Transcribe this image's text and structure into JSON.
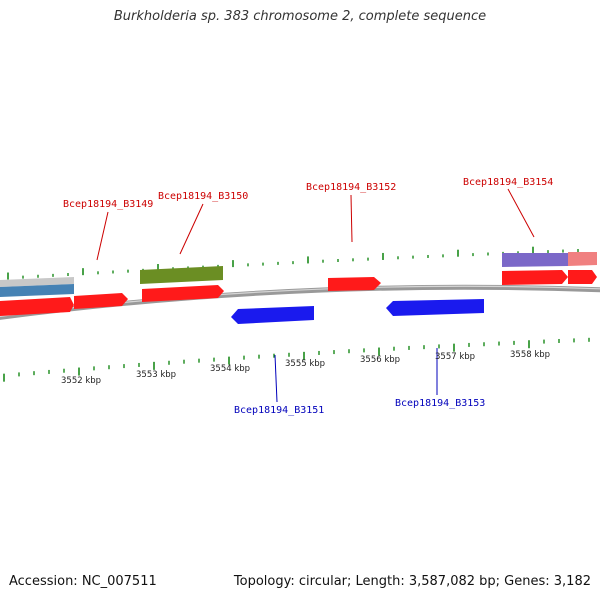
{
  "title": "Burkholderia sp. 383 chromosome 2, complete sequence",
  "footer": {
    "accession": "Accession: NC_007511",
    "summary": "Topology: circular; Length: 3,587,082 bp; Genes: 3,182"
  },
  "colors": {
    "forward_gene": "#ff1a1a",
    "reverse_gene": "#1a1aee",
    "forward_label": "#cc0000",
    "reverse_label": "#0000bb",
    "tick": "#1a8a1a",
    "backbone": "#888888",
    "olive_feature": "#6b8e23",
    "steelblue_feature": "#4682b4",
    "purple_feature": "#7b68c8",
    "pink_feature": "#f08080",
    "gray_feature": "#bbbbbb"
  },
  "kbp_labels": [
    "3552 kbp",
    "3553 kbp",
    "3554 kbp",
    "3555 kbp",
    "3556 kbp",
    "3557 kbp",
    "3558 kbp"
  ],
  "genes": [
    {
      "id": "Bcep18194_B3149",
      "strand": "forward"
    },
    {
      "id": "Bcep18194_B3150",
      "strand": "forward"
    },
    {
      "id": "Bcep18194_B3151",
      "strand": "reverse"
    },
    {
      "id": "Bcep18194_B3152",
      "strand": "forward"
    },
    {
      "id": "Bcep18194_B3153",
      "strand": "reverse"
    },
    {
      "id": "Bcep18194_B3154",
      "strand": "forward"
    }
  ]
}
